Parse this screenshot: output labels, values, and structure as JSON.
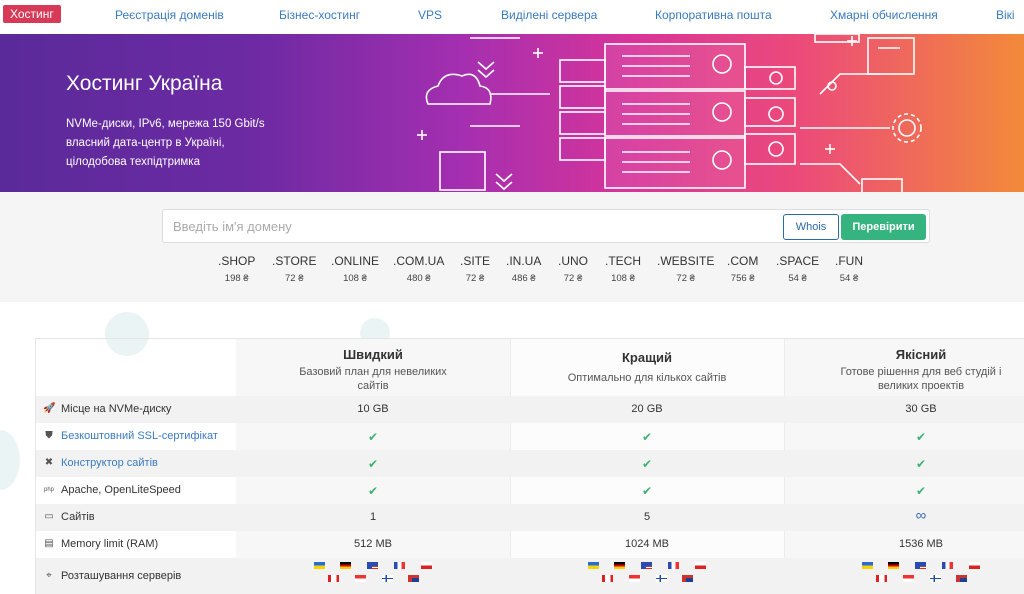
{
  "nav": {
    "active": "Хостинг",
    "links": [
      "Реєстрація доменів",
      "Бізнес-хостинг",
      "VPS",
      "Виділені сервера",
      "Корпоративна пошта",
      "Хмарні обчислення",
      "Вікі"
    ]
  },
  "hero": {
    "title": "Хостинг Україна",
    "desc": "NVMe-диски, IPv6, мережа 150 Gbit/s власний дата-центр в Україні, цілодобова техпідтримка"
  },
  "search": {
    "placeholder": "Введіть ім'я домену",
    "whois": "Whois",
    "check": "Перевірити"
  },
  "tlds": [
    {
      "name": ".SHOP",
      "price": "198 ₴"
    },
    {
      "name": ".STORE",
      "price": "72 ₴"
    },
    {
      "name": ".ONLINE",
      "price": "108 ₴"
    },
    {
      "name": ".COM.UA",
      "price": "480 ₴"
    },
    {
      "name": ".SITE",
      "price": "72 ₴"
    },
    {
      "name": ".IN.UA",
      "price": "486 ₴"
    },
    {
      "name": ".UNO",
      "price": "72 ₴"
    },
    {
      "name": ".TECH",
      "price": "108 ₴"
    },
    {
      "name": ".WEBSITE",
      "price": "72 ₴"
    },
    {
      "name": ".COM",
      "price": "756 ₴"
    },
    {
      "name": ".SPACE",
      "price": "54 ₴"
    },
    {
      "name": ".FUN",
      "price": "54 ₴"
    }
  ],
  "plans": [
    {
      "name": "Швидкий",
      "desc": "Базовий план для невеликих сайтів"
    },
    {
      "name": "Кращий",
      "desc": "Оптимально для кількох сайтів"
    },
    {
      "name": "Якісний",
      "desc": "Готове рішення для веб студій і великих проектів"
    }
  ],
  "rows": [
    {
      "label": "Місце на NVMe-диску",
      "icon": "rocket-icon",
      "values": [
        "10 GB",
        "20 GB",
        "30 GB"
      ]
    },
    {
      "label": "Безкоштовний SSL-сертифікат",
      "icon": "shield-icon",
      "values": [
        "✔",
        "✔",
        "✔"
      ]
    },
    {
      "label": "Конструктор сайтів",
      "icon": "tools-icon",
      "values": [
        "✔",
        "✔",
        "✔"
      ]
    },
    {
      "label": "Apache, OpenLiteSpeed",
      "icon": "php-icon",
      "values": [
        "✔",
        "✔",
        "✔"
      ]
    },
    {
      "label": "Сайтів",
      "icon": "window-icon",
      "values": [
        "1",
        "5",
        "∞"
      ]
    },
    {
      "label": "Memory limit (RAM)",
      "icon": "memory-icon",
      "values": [
        "512 MB",
        "1024 MB",
        "1536 MB"
      ]
    },
    {
      "label": "Розташування серверів",
      "icon": "location-icon",
      "values": []
    }
  ],
  "flags": [
    "ua",
    "de",
    "us",
    "fr",
    "pl",
    "ca",
    "sg",
    "fi",
    "au"
  ]
}
